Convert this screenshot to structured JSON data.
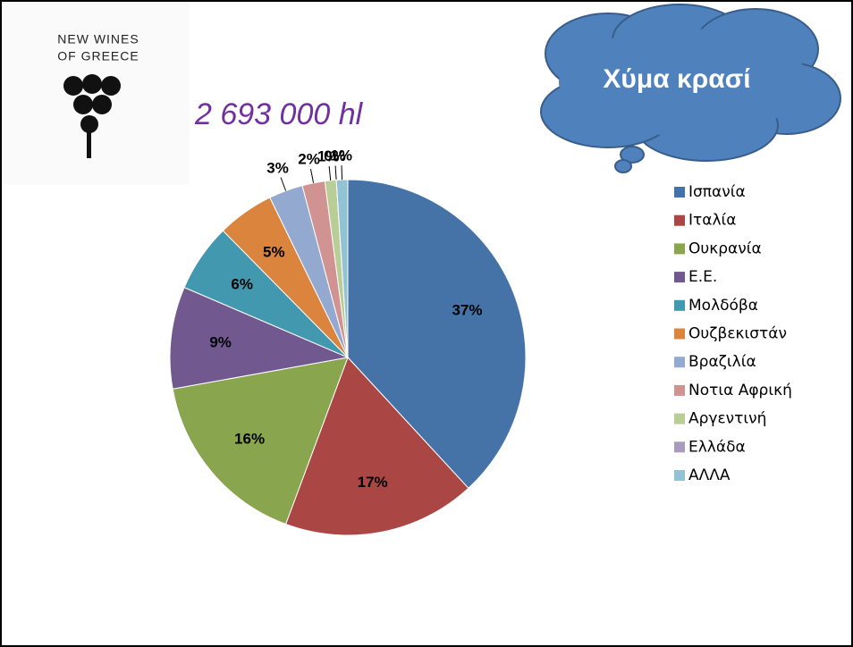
{
  "logo": {
    "line1": "NEW WINES",
    "line2": "OF GREECE"
  },
  "chart_data": {
    "type": "pie",
    "title": "Χύμα κρασί",
    "subtitle": "2 693 000 hl",
    "categories": [
      "Ισπανία",
      "Ιταλία",
      "Ουκρανία",
      "Ε.Ε.",
      "Μολδόβα",
      "Ουζβεκιστάν",
      "Βραζιλία",
      "Νοτια Αφρική",
      "Αργεντινή",
      "Ελλάδα",
      "ΑΛΛΑ"
    ],
    "values": [
      37,
      17,
      16,
      9,
      6,
      5,
      3,
      2,
      1,
      0,
      1
    ],
    "value_labels": [
      "37%",
      "17%",
      "16%",
      "9%",
      "6%",
      "5%",
      "3%",
      "2%",
      "1%",
      "0%",
      "1%"
    ],
    "colors": [
      "#4572a7",
      "#aa4643",
      "#89a54e",
      "#71588f",
      "#4198af",
      "#db843d",
      "#93a9cf",
      "#d19392",
      "#b9cd96",
      "#a99bbd",
      "#92c3d4"
    ],
    "legend": "right"
  }
}
